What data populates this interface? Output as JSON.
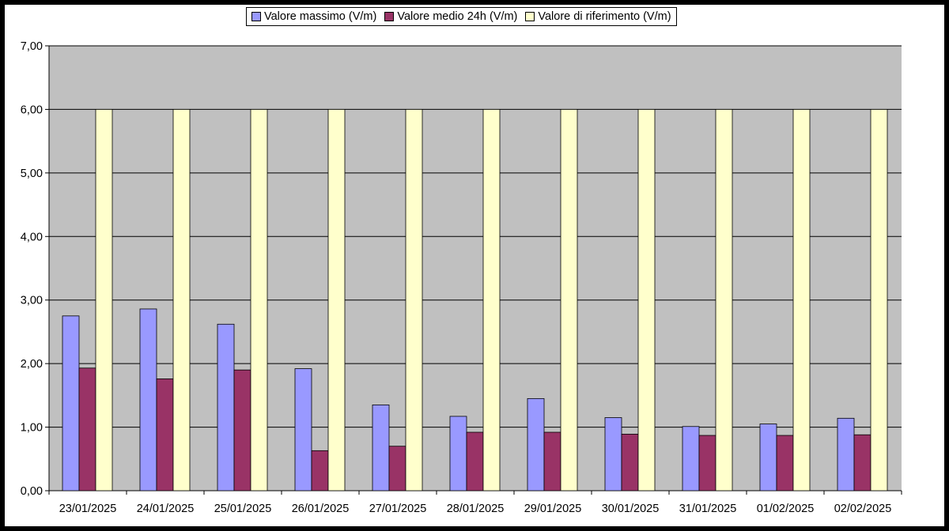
{
  "chart_data": {
    "type": "bar",
    "categories": [
      "23/01/2025",
      "24/01/2025",
      "25/01/2025",
      "26/01/2025",
      "27/01/2025",
      "28/01/2025",
      "29/01/2025",
      "30/01/2025",
      "31/01/2025",
      "01/02/2025",
      "02/02/2025"
    ],
    "series": [
      {
        "name": "Valore massimo (V/m)",
        "color": "#9999ff",
        "values": [
          2.75,
          2.86,
          2.62,
          1.92,
          1.35,
          1.17,
          1.45,
          1.15,
          1.01,
          1.05,
          1.14
        ]
      },
      {
        "name": "Valore medio 24h (V/m)",
        "color": "#993366",
        "values": [
          1.93,
          1.76,
          1.9,
          0.63,
          0.7,
          0.92,
          0.92,
          0.89,
          0.87,
          0.87,
          0.88
        ]
      },
      {
        "name": "Valore di riferimento (V/m)",
        "color": "#ffffcc",
        "values": [
          6,
          6,
          6,
          6,
          6,
          6,
          6,
          6,
          6,
          6,
          6
        ]
      }
    ],
    "ylim": [
      0,
      7
    ],
    "yticks": [
      "0,00",
      "1,00",
      "2,00",
      "3,00",
      "4,00",
      "5,00",
      "6,00",
      "7,00"
    ],
    "plot_background": "#c0c0c0",
    "grid": true,
    "legend_position": "top-center"
  }
}
